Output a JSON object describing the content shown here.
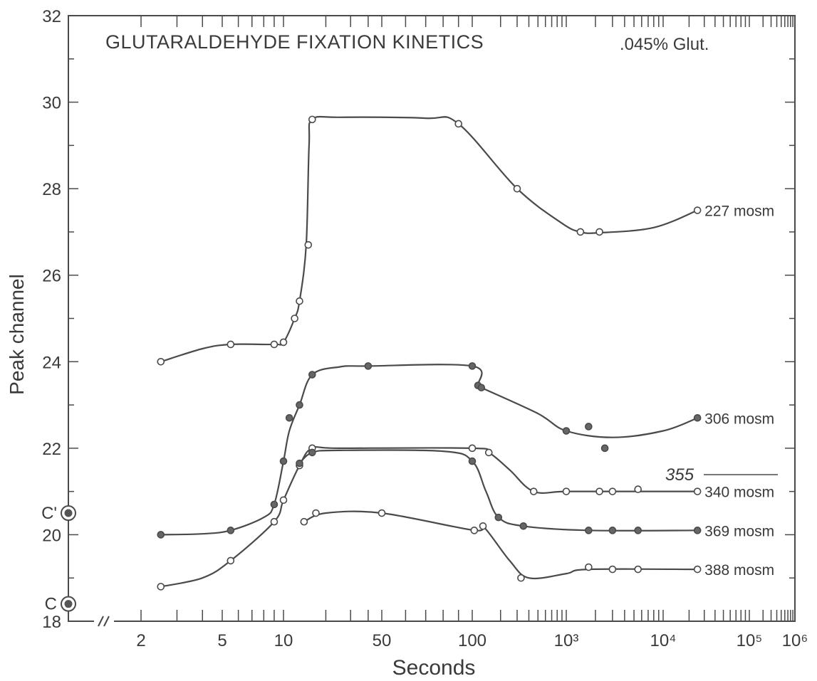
{
  "chart_data": {
    "type": "line",
    "title": "GLUTARALDEHYDE FIXATION KINETICS",
    "subtitle": ".045% Glut.",
    "xlabel": "Seconds",
    "ylabel": "Peak channel",
    "xscale": "log",
    "xlim": [
      1,
      1000000
    ],
    "ylim": [
      18,
      32
    ],
    "x_tick_labels": [
      "2",
      "5",
      "10",
      "50",
      "100",
      "10³",
      "10⁴",
      "10⁵",
      "10⁶"
    ],
    "x_tick_values": [
      2,
      5,
      10,
      50,
      100,
      1000,
      10000,
      100000,
      1000000
    ],
    "y_tick_labels": [
      "18",
      "20",
      "22",
      "24",
      "26",
      "28",
      "30",
      "32"
    ],
    "y_tick_values": [
      18,
      20,
      22,
      24,
      26,
      28,
      30,
      32
    ],
    "axis_break": "//",
    "grid": false,
    "control_markers": [
      {
        "label": "C'",
        "y": 20.5
      },
      {
        "label": "C",
        "y": 18.4
      }
    ],
    "annotations": [
      {
        "text": "355",
        "y": 20.55
      }
    ],
    "series": [
      {
        "name": "227 mosm",
        "marker": "open",
        "points": [
          [
            2.5,
            24.0
          ],
          [
            5.5,
            24.4
          ],
          [
            9,
            24.4
          ],
          [
            10,
            24.45
          ],
          [
            12,
            25.0
          ],
          [
            13,
            25.4
          ],
          [
            15,
            26.7
          ],
          [
            16,
            29.6
          ],
          [
            90,
            29.5
          ],
          [
            300,
            28.0
          ],
          [
            1400,
            27.0
          ],
          [
            2200,
            27.0
          ],
          [
            25000,
            27.5
          ]
        ],
        "curve": [
          [
            2.5,
            24.0
          ],
          [
            4,
            24.3
          ],
          [
            5.5,
            24.4
          ],
          [
            9,
            24.4
          ],
          [
            10,
            24.45
          ],
          [
            12,
            25.0
          ],
          [
            13,
            25.4
          ],
          [
            14.5,
            26.7
          ],
          [
            15.2,
            29.0
          ],
          [
            16,
            29.6
          ],
          [
            25,
            29.65
          ],
          [
            70,
            29.63
          ],
          [
            90,
            29.5
          ],
          [
            300,
            28.0
          ],
          [
            900,
            27.2
          ],
          [
            1400,
            27.0
          ],
          [
            2200,
            26.98
          ],
          [
            8000,
            27.1
          ],
          [
            25000,
            27.5
          ]
        ]
      },
      {
        "name": "306 mosm",
        "marker": "filled",
        "points": [
          [
            2.5,
            20.0
          ],
          [
            5.5,
            20.1
          ],
          [
            9,
            20.7
          ],
          [
            10,
            21.7
          ],
          [
            11,
            22.7
          ],
          [
            13,
            23.0
          ],
          [
            16,
            23.7
          ],
          [
            40,
            23.9
          ],
          [
            100,
            23.9
          ],
          [
            115,
            23.45
          ],
          [
            125,
            23.4
          ],
          [
            1000,
            22.4
          ],
          [
            1700,
            22.5
          ],
          [
            2500,
            22.0
          ],
          [
            25000,
            22.7
          ]
        ],
        "curve": [
          [
            2.5,
            20.0
          ],
          [
            4,
            20.02
          ],
          [
            5.5,
            20.1
          ],
          [
            8,
            20.4
          ],
          [
            9,
            20.7
          ],
          [
            10,
            21.7
          ],
          [
            11,
            22.4
          ],
          [
            13,
            23.0
          ],
          [
            16,
            23.7
          ],
          [
            25,
            23.88
          ],
          [
            40,
            23.9
          ],
          [
            100,
            23.9
          ],
          [
            115,
            23.45
          ],
          [
            125,
            23.4
          ],
          [
            500,
            22.8
          ],
          [
            1000,
            22.4
          ],
          [
            3000,
            22.25
          ],
          [
            10000,
            22.4
          ],
          [
            25000,
            22.7
          ]
        ]
      },
      {
        "name": "340 mosm",
        "marker": "open",
        "points": [
          [
            2.5,
            18.8
          ],
          [
            5.5,
            19.4
          ],
          [
            9,
            20.3
          ],
          [
            10,
            20.8
          ],
          [
            13,
            21.6
          ],
          [
            16,
            22.0
          ],
          [
            100,
            22.0
          ],
          [
            150,
            21.9
          ],
          [
            450,
            21.0
          ],
          [
            1000,
            21.0
          ],
          [
            2200,
            21.0
          ],
          [
            3000,
            21.0
          ],
          [
            5500,
            21.05
          ],
          [
            25000,
            21.0
          ]
        ],
        "curve": [
          [
            2.5,
            18.8
          ],
          [
            4,
            19.0
          ],
          [
            5.5,
            19.4
          ],
          [
            9,
            20.3
          ],
          [
            10,
            20.8
          ],
          [
            13,
            21.6
          ],
          [
            16,
            22.0
          ],
          [
            25,
            22.0
          ],
          [
            100,
            22.0
          ],
          [
            150,
            21.9
          ],
          [
            250,
            21.5
          ],
          [
            450,
            21.0
          ],
          [
            1000,
            21.0
          ],
          [
            5000,
            21.0
          ],
          [
            25000,
            21.0
          ]
        ]
      },
      {
        "name": "369 mosm",
        "marker": "filled",
        "points": [
          [
            13,
            21.65
          ],
          [
            16,
            21.9
          ],
          [
            100,
            21.7
          ],
          [
            190,
            20.4
          ],
          [
            350,
            20.2
          ],
          [
            1700,
            20.1
          ],
          [
            3000,
            20.1
          ],
          [
            5500,
            20.1
          ],
          [
            25000,
            20.1
          ]
        ],
        "curve": [
          [
            13,
            21.65
          ],
          [
            16,
            21.9
          ],
          [
            25,
            21.95
          ],
          [
            80,
            21.93
          ],
          [
            100,
            21.7
          ],
          [
            140,
            21.0
          ],
          [
            190,
            20.4
          ],
          [
            350,
            20.2
          ],
          [
            1700,
            20.1
          ],
          [
            25000,
            20.1
          ]
        ]
      },
      {
        "name": "388 mosm",
        "marker": "open",
        "points": [
          [
            14,
            20.3
          ],
          [
            17,
            20.5
          ],
          [
            50,
            20.5
          ],
          [
            105,
            20.1
          ],
          [
            130,
            20.2
          ],
          [
            330,
            19.0
          ],
          [
            1700,
            19.25
          ],
          [
            3000,
            19.2
          ],
          [
            5500,
            19.2
          ],
          [
            25000,
            19.2
          ]
        ],
        "curve": [
          [
            14,
            20.3
          ],
          [
            20,
            20.5
          ],
          [
            50,
            20.5
          ],
          [
            105,
            20.1
          ],
          [
            130,
            20.2
          ],
          [
            250,
            19.4
          ],
          [
            400,
            19.0
          ],
          [
            1000,
            19.1
          ],
          [
            1700,
            19.2
          ],
          [
            25000,
            19.2
          ]
        ]
      }
    ]
  }
}
